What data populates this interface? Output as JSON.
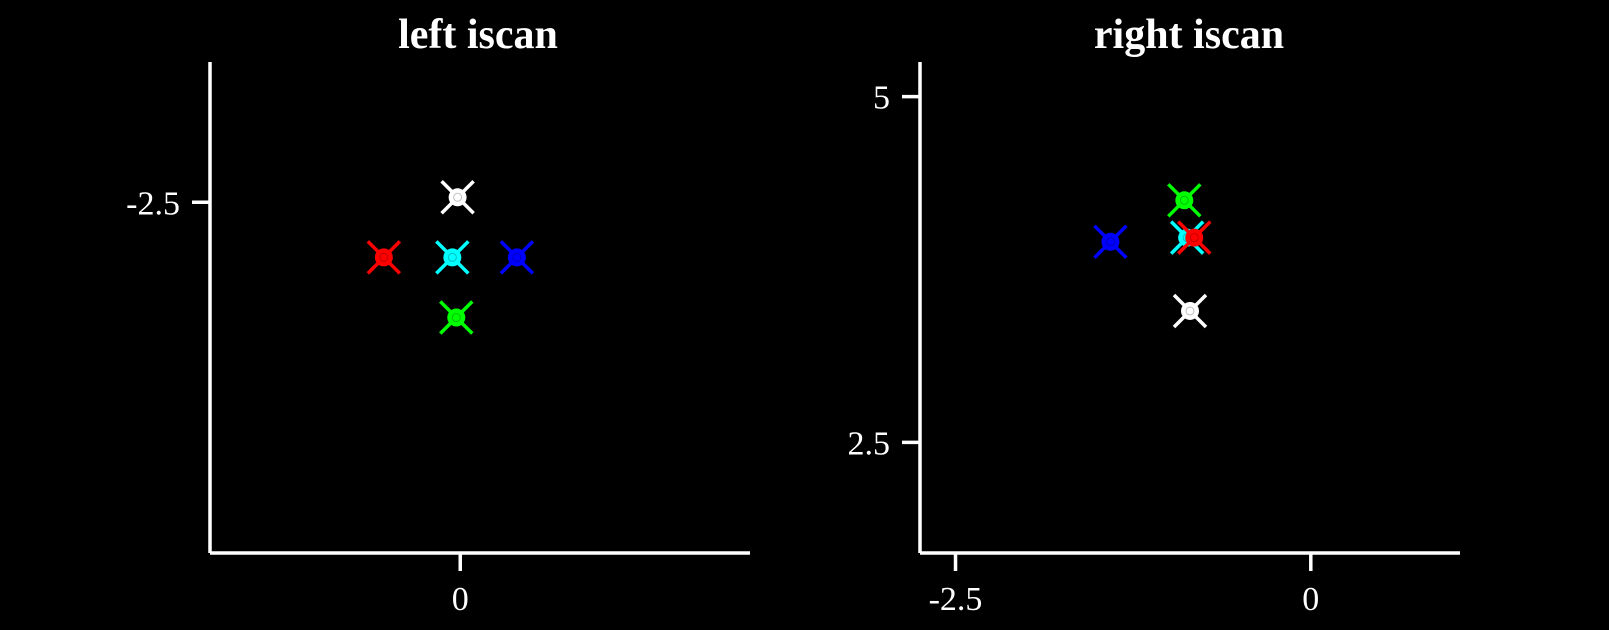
{
  "chart_data": [
    {
      "type": "scatter",
      "title": "left iscan",
      "xlabel": "",
      "ylabel": "",
      "xlim": [
        -1.9,
        2.2
      ],
      "ylim": [
        -6.0,
        -1.1
      ],
      "xticks": [
        0
      ],
      "xtick_labels": [
        "0"
      ],
      "yticks": [
        -2.5
      ],
      "ytick_labels": [
        "-2.5"
      ],
      "grid": false,
      "points": [
        {
          "x": -0.58,
          "y": -3.05,
          "color": "#ff0000",
          "marker": "x-dot"
        },
        {
          "x": -0.02,
          "y": -2.45,
          "color": "#ffffff",
          "marker": "x-dot"
        },
        {
          "x": -0.06,
          "y": -3.05,
          "color": "#00ffff",
          "marker": "x-dot"
        },
        {
          "x": 0.43,
          "y": -3.05,
          "color": "#0000ff",
          "marker": "x-dot"
        },
        {
          "x": -0.03,
          "y": -3.65,
          "color": "#00ff00",
          "marker": "x-dot"
        }
      ]
    },
    {
      "type": "scatter",
      "title": "right iscan",
      "xlabel": "",
      "ylabel": "",
      "xlim": [
        -2.75,
        1.05
      ],
      "ylim": [
        1.7,
        5.25
      ],
      "xticks": [
        -2.5,
        0
      ],
      "xtick_labels": [
        "-2.5",
        "0"
      ],
      "yticks": [
        2.5,
        5
      ],
      "ytick_labels": [
        "2.5",
        "5"
      ],
      "grid": false,
      "points": [
        {
          "x": -1.41,
          "y": 3.95,
          "color": "#0000ff",
          "marker": "x-dot"
        },
        {
          "x": -0.89,
          "y": 4.25,
          "color": "#00ff00",
          "marker": "x-dot"
        },
        {
          "x": -0.87,
          "y": 3.98,
          "color": "#00ffff",
          "marker": "x-dot"
        },
        {
          "x": -0.82,
          "y": 3.98,
          "color": "#ff0000",
          "marker": "x-dot"
        },
        {
          "x": -0.85,
          "y": 3.45,
          "color": "#ffffff",
          "marker": "x-dot"
        }
      ]
    }
  ]
}
